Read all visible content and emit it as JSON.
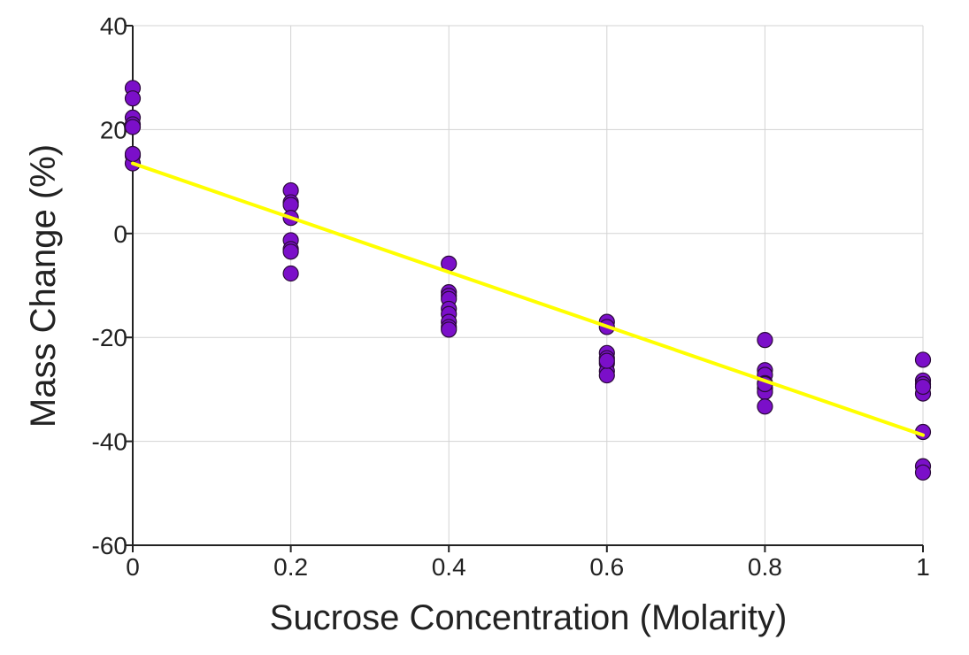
{
  "chart_data": {
    "type": "scatter",
    "title": "",
    "xlabel": "Sucrose Concentration (Molarity)",
    "ylabel": "Mass Change (%)",
    "xlim": [
      0,
      1
    ],
    "ylim": [
      -60,
      40
    ],
    "x_ticks": [
      0,
      0.2,
      0.4,
      0.6,
      0.8,
      1
    ],
    "x_tick_labels": [
      "0",
      "0.2",
      "0.4",
      "0.6",
      "0.8",
      "1"
    ],
    "y_ticks": [
      -60,
      -40,
      -20,
      0,
      20,
      40
    ],
    "y_tick_labels": [
      "-60",
      "-40",
      "-20",
      "0",
      "20",
      "40"
    ],
    "grid": true,
    "colors": {
      "points": "#7b0fc9",
      "trendline": "#ffff00"
    },
    "series": [
      {
        "x": [
          0,
          0,
          0,
          0,
          0,
          0,
          0,
          0,
          0.2,
          0.2,
          0.2,
          0.2,
          0.2,
          0.2,
          0.2,
          0.2,
          0.4,
          0.4,
          0.4,
          0.4,
          0.4,
          0.4,
          0.4,
          0.4,
          0.4,
          0.6,
          0.6,
          0.6,
          0.6,
          0.6,
          0.6,
          0.6,
          0.6,
          0.8,
          0.8,
          0.8,
          0.8,
          0.8,
          0.8,
          0.8,
          0.8,
          1,
          1,
          1,
          1,
          1,
          1,
          1,
          1
        ],
        "y": [
          28,
          26,
          22.3,
          21,
          20.5,
          15,
          13.5,
          15.3,
          8.3,
          6,
          5.5,
          3,
          -1.3,
          -3,
          -3.5,
          -7.7,
          -5.8,
          -11.3,
          -12,
          -12.6,
          -14.5,
          -15.5,
          -17,
          -18,
          -18.5,
          -17,
          -18,
          -23,
          -24,
          -25,
          -26.5,
          -27.3,
          -24.5,
          -20.5,
          -26.3,
          -27.2,
          -28.8,
          -29.8,
          -30.5,
          -33.3,
          -29,
          -24.3,
          -28.3,
          -29,
          -30.8,
          -38.2,
          -44.8,
          -46,
          -29.5
        ]
      }
    ],
    "trendline": {
      "x": [
        0,
        1
      ],
      "y": [
        13.5,
        -38.8
      ]
    }
  }
}
